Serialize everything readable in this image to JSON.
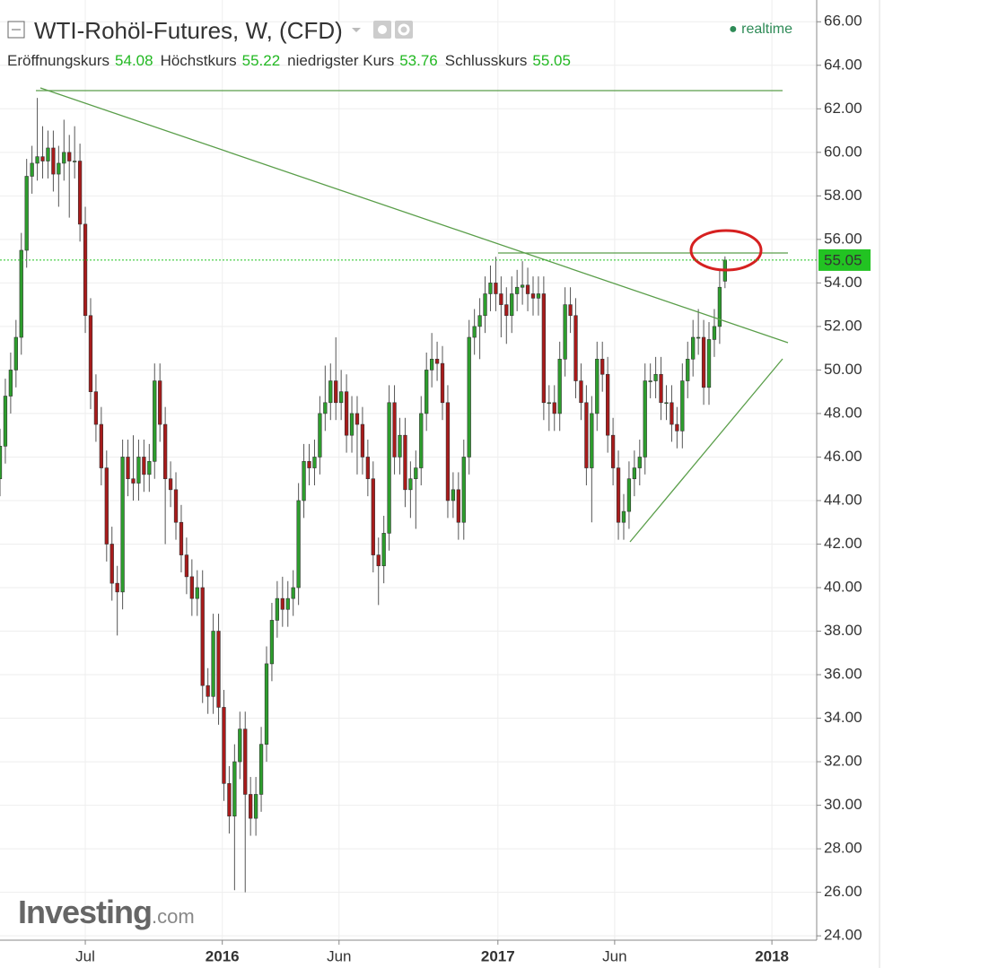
{
  "chart_data": {
    "type": "candlestick",
    "title": "WTI-Rohöl-Futures, W, (CFD)",
    "status": "realtime",
    "stats": [
      {
        "label": "Eröffnungskurs",
        "value": 54.08
      },
      {
        "label": "Höchstkurs",
        "value": 55.22
      },
      {
        "label": "niedrigster Kurs",
        "value": 53.76
      },
      {
        "label": "Schlusskurs",
        "value": 55.05
      }
    ],
    "last_price": 55.05,
    "watermark": {
      "brand": "Investing",
      "suffix": ".com"
    },
    "up_color": "#2d9e2d",
    "down_color": "#a81b1b",
    "price_line_color": "#22c322",
    "grid": true,
    "xlim": [
      0,
      153.2
    ],
    "xticks": [
      {
        "value": 16,
        "label": "Jul"
      },
      {
        "value": 41.7,
        "label": "2016"
      },
      {
        "value": 63.6,
        "label": "Jun"
      },
      {
        "value": 93.4,
        "label": "2017"
      },
      {
        "value": 115.3,
        "label": "Jun"
      },
      {
        "value": 144.8,
        "label": "2018"
      }
    ],
    "ylim": [
      23.8,
      67.0
    ],
    "yticks": [
      {
        "value": 24,
        "label": "24.00"
      },
      {
        "value": 26,
        "label": "26.00"
      },
      {
        "value": 28,
        "label": "28.00"
      },
      {
        "value": 30,
        "label": "30.00"
      },
      {
        "value": 32,
        "label": "32.00"
      },
      {
        "value": 34,
        "label": "34.00"
      },
      {
        "value": 36,
        "label": "36.00"
      },
      {
        "value": 38,
        "label": "38.00"
      },
      {
        "value": 40,
        "label": "40.00"
      },
      {
        "value": 42,
        "label": "42.00"
      },
      {
        "value": 44,
        "label": "44.00"
      },
      {
        "value": 46,
        "label": "46.00"
      },
      {
        "value": 48,
        "label": "48.00"
      },
      {
        "value": 50,
        "label": "50.00"
      },
      {
        "value": 52,
        "label": "52.00"
      },
      {
        "value": 54,
        "label": "54.00"
      },
      {
        "value": 56,
        "label": "56.00"
      },
      {
        "value": 58,
        "label": "58.00"
      },
      {
        "value": 60,
        "label": "60.00"
      },
      {
        "value": 62,
        "label": "62.00"
      },
      {
        "value": 64,
        "label": "64.00"
      },
      {
        "value": 66,
        "label": "66.00"
      }
    ],
    "open": [
      45.0,
      46.5,
      48.8,
      50.0,
      51.5,
      55.5,
      58.9,
      59.5,
      59.8,
      59.6,
      60.2,
      59.0,
      59.5,
      60.0,
      59.6,
      59.6,
      56.7,
      52.5,
      49.0,
      47.5,
      45.5,
      42.0,
      40.2,
      39.8,
      46.0,
      45.0,
      44.8,
      46.0,
      45.2,
      45.8,
      49.5,
      47.5,
      45.0,
      44.5,
      43.0,
      41.5,
      40.5,
      39.5,
      40.0,
      35.5,
      35.0,
      38.0,
      34.5,
      31.0,
      29.5,
      32.0,
      33.5,
      30.5,
      29.4,
      30.5,
      32.8,
      36.5,
      38.5,
      39.5,
      39.0,
      39.5,
      40.0,
      44.0,
      45.8,
      45.5,
      46.0,
      48.0,
      48.5,
      49.5,
      48.5,
      49.0,
      47.0,
      48.0,
      47.5,
      46.0,
      45.0,
      41.5,
      41.0,
      42.5,
      48.5,
      46.0,
      47.0,
      44.5,
      45.0,
      45.5,
      48.0,
      50.0,
      50.5,
      50.3,
      48.5,
      44.0,
      44.5,
      43.0,
      46.0,
      51.5,
      52.0,
      52.5,
      53.5,
      54.0,
      53.5,
      53.0,
      52.5,
      53.5,
      53.8,
      53.9,
      53.5,
      53.3,
      53.5,
      48.5,
      48.5,
      48.0,
      50.5,
      53.0,
      52.5,
      49.5,
      48.5,
      45.5,
      48.0,
      50.5,
      49.8,
      47.0,
      45.5,
      43.0,
      43.5,
      45.0,
      45.5,
      46.0,
      49.5,
      49.5,
      49.8,
      48.5,
      48.5,
      47.5,
      47.2,
      49.5,
      50.5,
      51.5,
      51.5,
      49.2,
      51.4,
      52.0,
      54.08
    ],
    "high": [
      47.3,
      49.6,
      50.8,
      52.3,
      56.3,
      59.7,
      60.3,
      62.5,
      61.2,
      61.0,
      61.0,
      60.3,
      61.5,
      60.8,
      61.2,
      60.4,
      57.5,
      53.3,
      49.8,
      48.3,
      46.3,
      42.8,
      41.0,
      46.8,
      46.8,
      47.0,
      46.8,
      46.8,
      46.6,
      50.3,
      50.3,
      48.3,
      45.8,
      45.3,
      43.8,
      42.3,
      41.3,
      40.8,
      40.8,
      36.3,
      38.8,
      38.8,
      35.3,
      31.8,
      32.8,
      34.3,
      34.3,
      31.3,
      31.3,
      33.6,
      37.3,
      39.3,
      40.3,
      40.5,
      40.3,
      40.8,
      44.8,
      46.6,
      46.6,
      46.8,
      48.8,
      50.2,
      50.3,
      51.5,
      50.0,
      49.8,
      48.8,
      48.8,
      48.3,
      46.8,
      45.8,
      42.3,
      43.3,
      49.3,
      49.3,
      47.8,
      47.8,
      45.8,
      46.3,
      48.8,
      50.8,
      51.7,
      51.3,
      51.1,
      49.3,
      45.3,
      45.3,
      46.8,
      52.3,
      52.8,
      53.3,
      54.3,
      54.8,
      55.2,
      54.3,
      53.8,
      54.3,
      54.6,
      55.0,
      54.7,
      54.3,
      54.3,
      54.3,
      49.3,
      49.3,
      51.3,
      53.8,
      53.8,
      53.3,
      50.3,
      49.3,
      48.8,
      51.3,
      51.3,
      50.6,
      47.8,
      46.3,
      44.3,
      45.8,
      46.3,
      46.8,
      50.3,
      50.3,
      50.6,
      50.6,
      49.3,
      49.3,
      48.3,
      50.3,
      51.3,
      52.3,
      52.8,
      52.3,
      52.2,
      52.8,
      54.6,
      55.22
    ],
    "low": [
      44.2,
      45.7,
      48.0,
      49.2,
      50.7,
      54.7,
      58.1,
      58.7,
      58.8,
      58.8,
      58.2,
      57.5,
      58.7,
      57.0,
      58.8,
      55.9,
      51.7,
      48.2,
      46.7,
      44.7,
      41.2,
      39.4,
      37.8,
      39.0,
      44.2,
      44.0,
      44.0,
      44.4,
      44.4,
      45.0,
      46.7,
      42.0,
      43.7,
      42.2,
      40.7,
      39.7,
      38.7,
      38.7,
      34.7,
      34.2,
      34.2,
      33.7,
      30.2,
      28.7,
      26.1,
      31.2,
      26.0,
      28.6,
      28.6,
      29.7,
      32.0,
      35.7,
      37.7,
      38.2,
      38.2,
      38.7,
      39.2,
      43.2,
      44.7,
      44.7,
      45.2,
      47.2,
      47.7,
      47.7,
      47.7,
      46.2,
      46.2,
      45.2,
      45.2,
      44.2,
      40.7,
      39.2,
      40.2,
      41.7,
      45.2,
      45.2,
      43.7,
      43.2,
      42.7,
      44.7,
      47.2,
      49.2,
      49.5,
      47.7,
      43.2,
      43.2,
      42.2,
      42.2,
      45.2,
      50.7,
      50.5,
      51.7,
      52.7,
      52.7,
      51.5,
      51.2,
      51.7,
      52.7,
      53.0,
      52.7,
      52.5,
      52.5,
      47.7,
      47.2,
      47.2,
      47.2,
      49.7,
      51.7,
      48.7,
      47.7,
      44.7,
      43.0,
      47.2,
      49.0,
      46.2,
      44.7,
      42.2,
      42.2,
      42.7,
      44.2,
      44.7,
      45.2,
      48.7,
      48.7,
      47.7,
      47.7,
      46.7,
      46.4,
      46.4,
      48.7,
      49.7,
      50.7,
      48.4,
      48.4,
      50.6,
      51.2,
      53.76
    ],
    "close": [
      46.5,
      48.8,
      50.0,
      51.5,
      55.5,
      58.9,
      59.5,
      59.8,
      59.6,
      60.2,
      59.0,
      59.5,
      60.0,
      59.6,
      59.6,
      56.7,
      52.5,
      49.0,
      47.5,
      45.5,
      42.0,
      40.2,
      39.8,
      46.0,
      45.0,
      44.8,
      46.0,
      45.2,
      45.8,
      49.5,
      47.5,
      45.0,
      44.5,
      43.0,
      41.5,
      40.5,
      39.5,
      40.0,
      35.5,
      35.0,
      38.0,
      34.5,
      31.0,
      29.5,
      32.0,
      33.5,
      30.5,
      29.4,
      30.5,
      32.8,
      36.5,
      38.5,
      39.5,
      39.0,
      39.5,
      40.0,
      44.0,
      45.8,
      45.5,
      46.0,
      48.0,
      48.5,
      49.5,
      48.5,
      49.0,
      47.0,
      48.0,
      47.5,
      46.0,
      45.0,
      41.5,
      41.0,
      42.5,
      48.5,
      46.0,
      47.0,
      44.5,
      45.0,
      45.5,
      48.0,
      50.0,
      50.5,
      50.3,
      48.5,
      44.0,
      44.5,
      43.0,
      46.0,
      51.5,
      52.0,
      52.5,
      53.5,
      54.0,
      53.5,
      53.0,
      52.5,
      53.5,
      53.8,
      53.9,
      53.5,
      53.3,
      53.5,
      48.5,
      48.5,
      48.0,
      50.5,
      53.0,
      52.5,
      49.5,
      48.5,
      45.5,
      48.0,
      50.5,
      49.8,
      47.0,
      45.5,
      43.0,
      43.5,
      45.0,
      45.5,
      46.0,
      49.5,
      49.5,
      49.8,
      48.5,
      48.5,
      47.5,
      47.2,
      49.5,
      50.5,
      51.5,
      51.5,
      49.2,
      51.4,
      52.0,
      53.8,
      55.05
    ]
  }
}
